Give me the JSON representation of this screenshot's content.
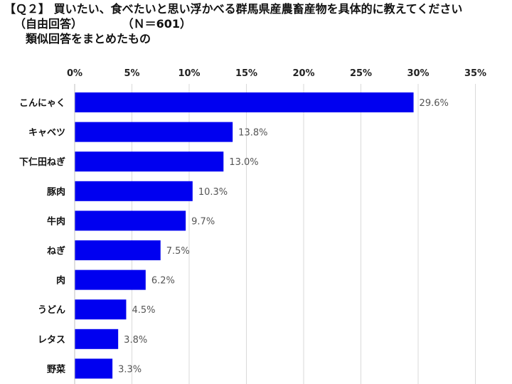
{
  "title": {
    "q_label": "【Ｑ２】",
    "question": "買いたい、食べたいと思い浮かべる群馬県産農畜産物を具体的に教えてください",
    "answer_type": "（自由回答）",
    "sample": "（Ｎ＝601）",
    "note": "類似回答をまとめたもの"
  },
  "chart_data": {
    "type": "bar",
    "orientation": "horizontal",
    "categories": [
      "こんにゃく",
      "キャベツ",
      "下仁田ねぎ",
      "豚肉",
      "牛肉",
      "ねぎ",
      "肉",
      "うどん",
      "レタス",
      "野菜"
    ],
    "values": [
      29.6,
      13.8,
      13.0,
      10.3,
      9.7,
      7.5,
      6.2,
      4.5,
      3.8,
      3.3
    ],
    "data_labels": [
      "29.6%",
      "13.8%",
      "13.0%",
      "10.3%",
      "9.7%",
      "7.5%",
      "6.2%",
      "4.5%",
      "3.8%",
      "3.3%"
    ],
    "x_ticks": [
      0,
      5,
      10,
      15,
      20,
      25,
      30,
      35
    ],
    "x_tick_labels": [
      "0%",
      "5%",
      "10%",
      "15%",
      "20%",
      "25%",
      "30%",
      "35%"
    ],
    "xlim": [
      0,
      35
    ],
    "axis_position": "top",
    "grid": true,
    "bar_color": "#0000f0",
    "grid_color": "#d9d9d9"
  }
}
